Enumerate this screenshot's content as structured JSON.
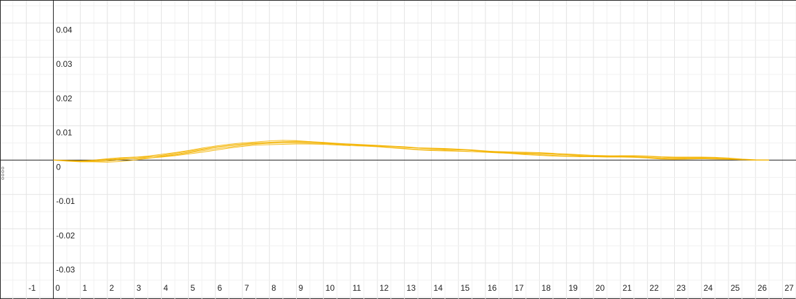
{
  "chart_data": {
    "type": "line",
    "title": "",
    "xlabel": "",
    "ylabel": "",
    "xlim": [
      -1.95,
      27.5
    ],
    "ylim": [
      -0.0405,
      0.0465
    ],
    "x_ticks": [
      -1,
      0,
      1,
      2,
      3,
      4,
      5,
      6,
      7,
      8,
      9,
      10,
      11,
      12,
      13,
      14,
      15,
      16,
      17,
      18,
      19,
      20,
      21,
      22,
      23,
      24,
      25,
      26,
      27
    ],
    "y_ticks": [
      0.04,
      0.03,
      0.02,
      0.01,
      0,
      -0.01,
      -0.02,
      -0.03
    ],
    "y_tick_labels": [
      "0.04",
      "0.03",
      "0.02",
      "0.01",
      "0",
      "-0.01",
      "-0.02",
      "-0.03"
    ],
    "grid": true,
    "series_color": "#f4b400",
    "x": [
      0,
      0.5,
      1,
      1.5,
      2,
      2.5,
      3,
      3.5,
      4,
      4.5,
      5,
      5.5,
      6,
      6.5,
      7,
      7.5,
      8,
      8.5,
      9,
      9.5,
      10,
      10.5,
      11,
      11.5,
      12,
      12.5,
      13,
      13.5,
      14,
      14.5,
      15,
      15.5,
      16,
      16.5,
      17,
      17.5,
      18,
      18.5,
      19,
      19.5,
      20,
      20.5,
      21,
      21.5,
      22,
      22.5,
      23,
      23.5,
      24,
      24.5,
      25,
      25.5,
      26,
      26.5
    ],
    "series": [
      {
        "values": [
          0,
          -0.0002,
          -0.0004,
          -0.0002,
          0.0002,
          0.0005,
          0.0008,
          0.0012,
          0.0017,
          0.0022,
          0.0028,
          0.0035,
          0.0041,
          0.0046,
          0.005,
          0.0053,
          0.0056,
          0.0058,
          0.0057,
          0.0054,
          0.005,
          0.0047,
          0.0045,
          0.0044,
          0.0043,
          0.0041,
          0.0039,
          0.0036,
          0.0035,
          0.0034,
          0.0032,
          0.003,
          0.0027,
          0.0024,
          0.0022,
          0.0021,
          0.002,
          0.0019,
          0.0018,
          0.0016,
          0.0014,
          0.0013,
          0.0012,
          0.0012,
          0.0011,
          0.0009,
          0.0007,
          0.0007,
          0.0008,
          0.0007,
          0.0005,
          0.0002,
          0,
          0
        ]
      },
      {
        "values": [
          0,
          -0.0001,
          -0.0003,
          -0.0004,
          -0.0003,
          0.0001,
          0.0005,
          0.0009,
          0.0014,
          0.002,
          0.0026,
          0.0032,
          0.0038,
          0.0043,
          0.0047,
          0.005,
          0.0052,
          0.0054,
          0.0055,
          0.0054,
          0.0052,
          0.0049,
          0.0046,
          0.0043,
          0.0041,
          0.004,
          0.0038,
          0.0035,
          0.0033,
          0.0031,
          0.003,
          0.0029,
          0.0026,
          0.0023,
          0.0021,
          0.002,
          0.0019,
          0.0017,
          0.0015,
          0.0013,
          0.0012,
          0.0011,
          0.0011,
          0.001,
          0.0008,
          0.0006,
          0.0005,
          0.0006,
          0.0006,
          0.0005,
          0.0003,
          0.0001,
          0,
          0
        ]
      },
      {
        "values": [
          0,
          -0.0003,
          -0.0005,
          -0.0005,
          -0.0006,
          -0.0004,
          0,
          0.0005,
          0.001,
          0.0015,
          0.0021,
          0.0027,
          0.0033,
          0.0038,
          0.0043,
          0.0047,
          0.0049,
          0.005,
          0.005,
          0.0049,
          0.0048,
          0.0046,
          0.0044,
          0.0042,
          0.004,
          0.0037,
          0.0034,
          0.0031,
          0.003,
          0.0029,
          0.0027,
          0.0025,
          0.0023,
          0.0021,
          0.002,
          0.0018,
          0.0016,
          0.0014,
          0.0012,
          0.0011,
          0.001,
          0.0009,
          0.0009,
          0.0008,
          0.0006,
          0.0003,
          0.0002,
          0.0003,
          0.0004,
          0.0003,
          0.0002,
          0.0001,
          0,
          0
        ]
      },
      {
        "values": [
          0,
          -0.0002,
          -0.0003,
          -0.0002,
          0,
          0.0003,
          0.0004,
          0.0006,
          0.0009,
          0.0013,
          0.0018,
          0.0023,
          0.0029,
          0.0035,
          0.004,
          0.0044,
          0.0045,
          0.0046,
          0.0047,
          0.0047,
          0.0046,
          0.0044,
          0.0042,
          0.0041,
          0.0039,
          0.0036,
          0.0033,
          0.003,
          0.0028,
          0.0027,
          0.0026,
          0.0025,
          0.0024,
          0.0022,
          0.0019,
          0.0016,
          0.0014,
          0.0012,
          0.0011,
          0.001,
          0.001,
          0.001,
          0.001,
          0.0009,
          0.0007,
          0.0005,
          0.0004,
          0.0004,
          0.0005,
          0.0004,
          0.0003,
          0.0001,
          0,
          0
        ]
      },
      {
        "values": [
          0,
          -0.0001,
          -0.0002,
          0,
          0.0004,
          0.0007,
          0.0009,
          0.001,
          0.0012,
          0.0017,
          0.0023,
          0.003,
          0.0037,
          0.0042,
          0.0046,
          0.0049,
          0.0051,
          0.0053,
          0.0053,
          0.0052,
          0.005,
          0.0048,
          0.0047,
          0.0045,
          0.0043,
          0.004,
          0.0037,
          0.0035,
          0.0034,
          0.0033,
          0.0031,
          0.0028,
          0.0026,
          0.0025,
          0.0024,
          0.0023,
          0.0022,
          0.002,
          0.0017,
          0.0014,
          0.0012,
          0.0012,
          0.0013,
          0.0013,
          0.0012,
          0.001,
          0.0009,
          0.0009,
          0.0009,
          0.0008,
          0.0006,
          0.0003,
          0.0001,
          0
        ]
      }
    ]
  }
}
